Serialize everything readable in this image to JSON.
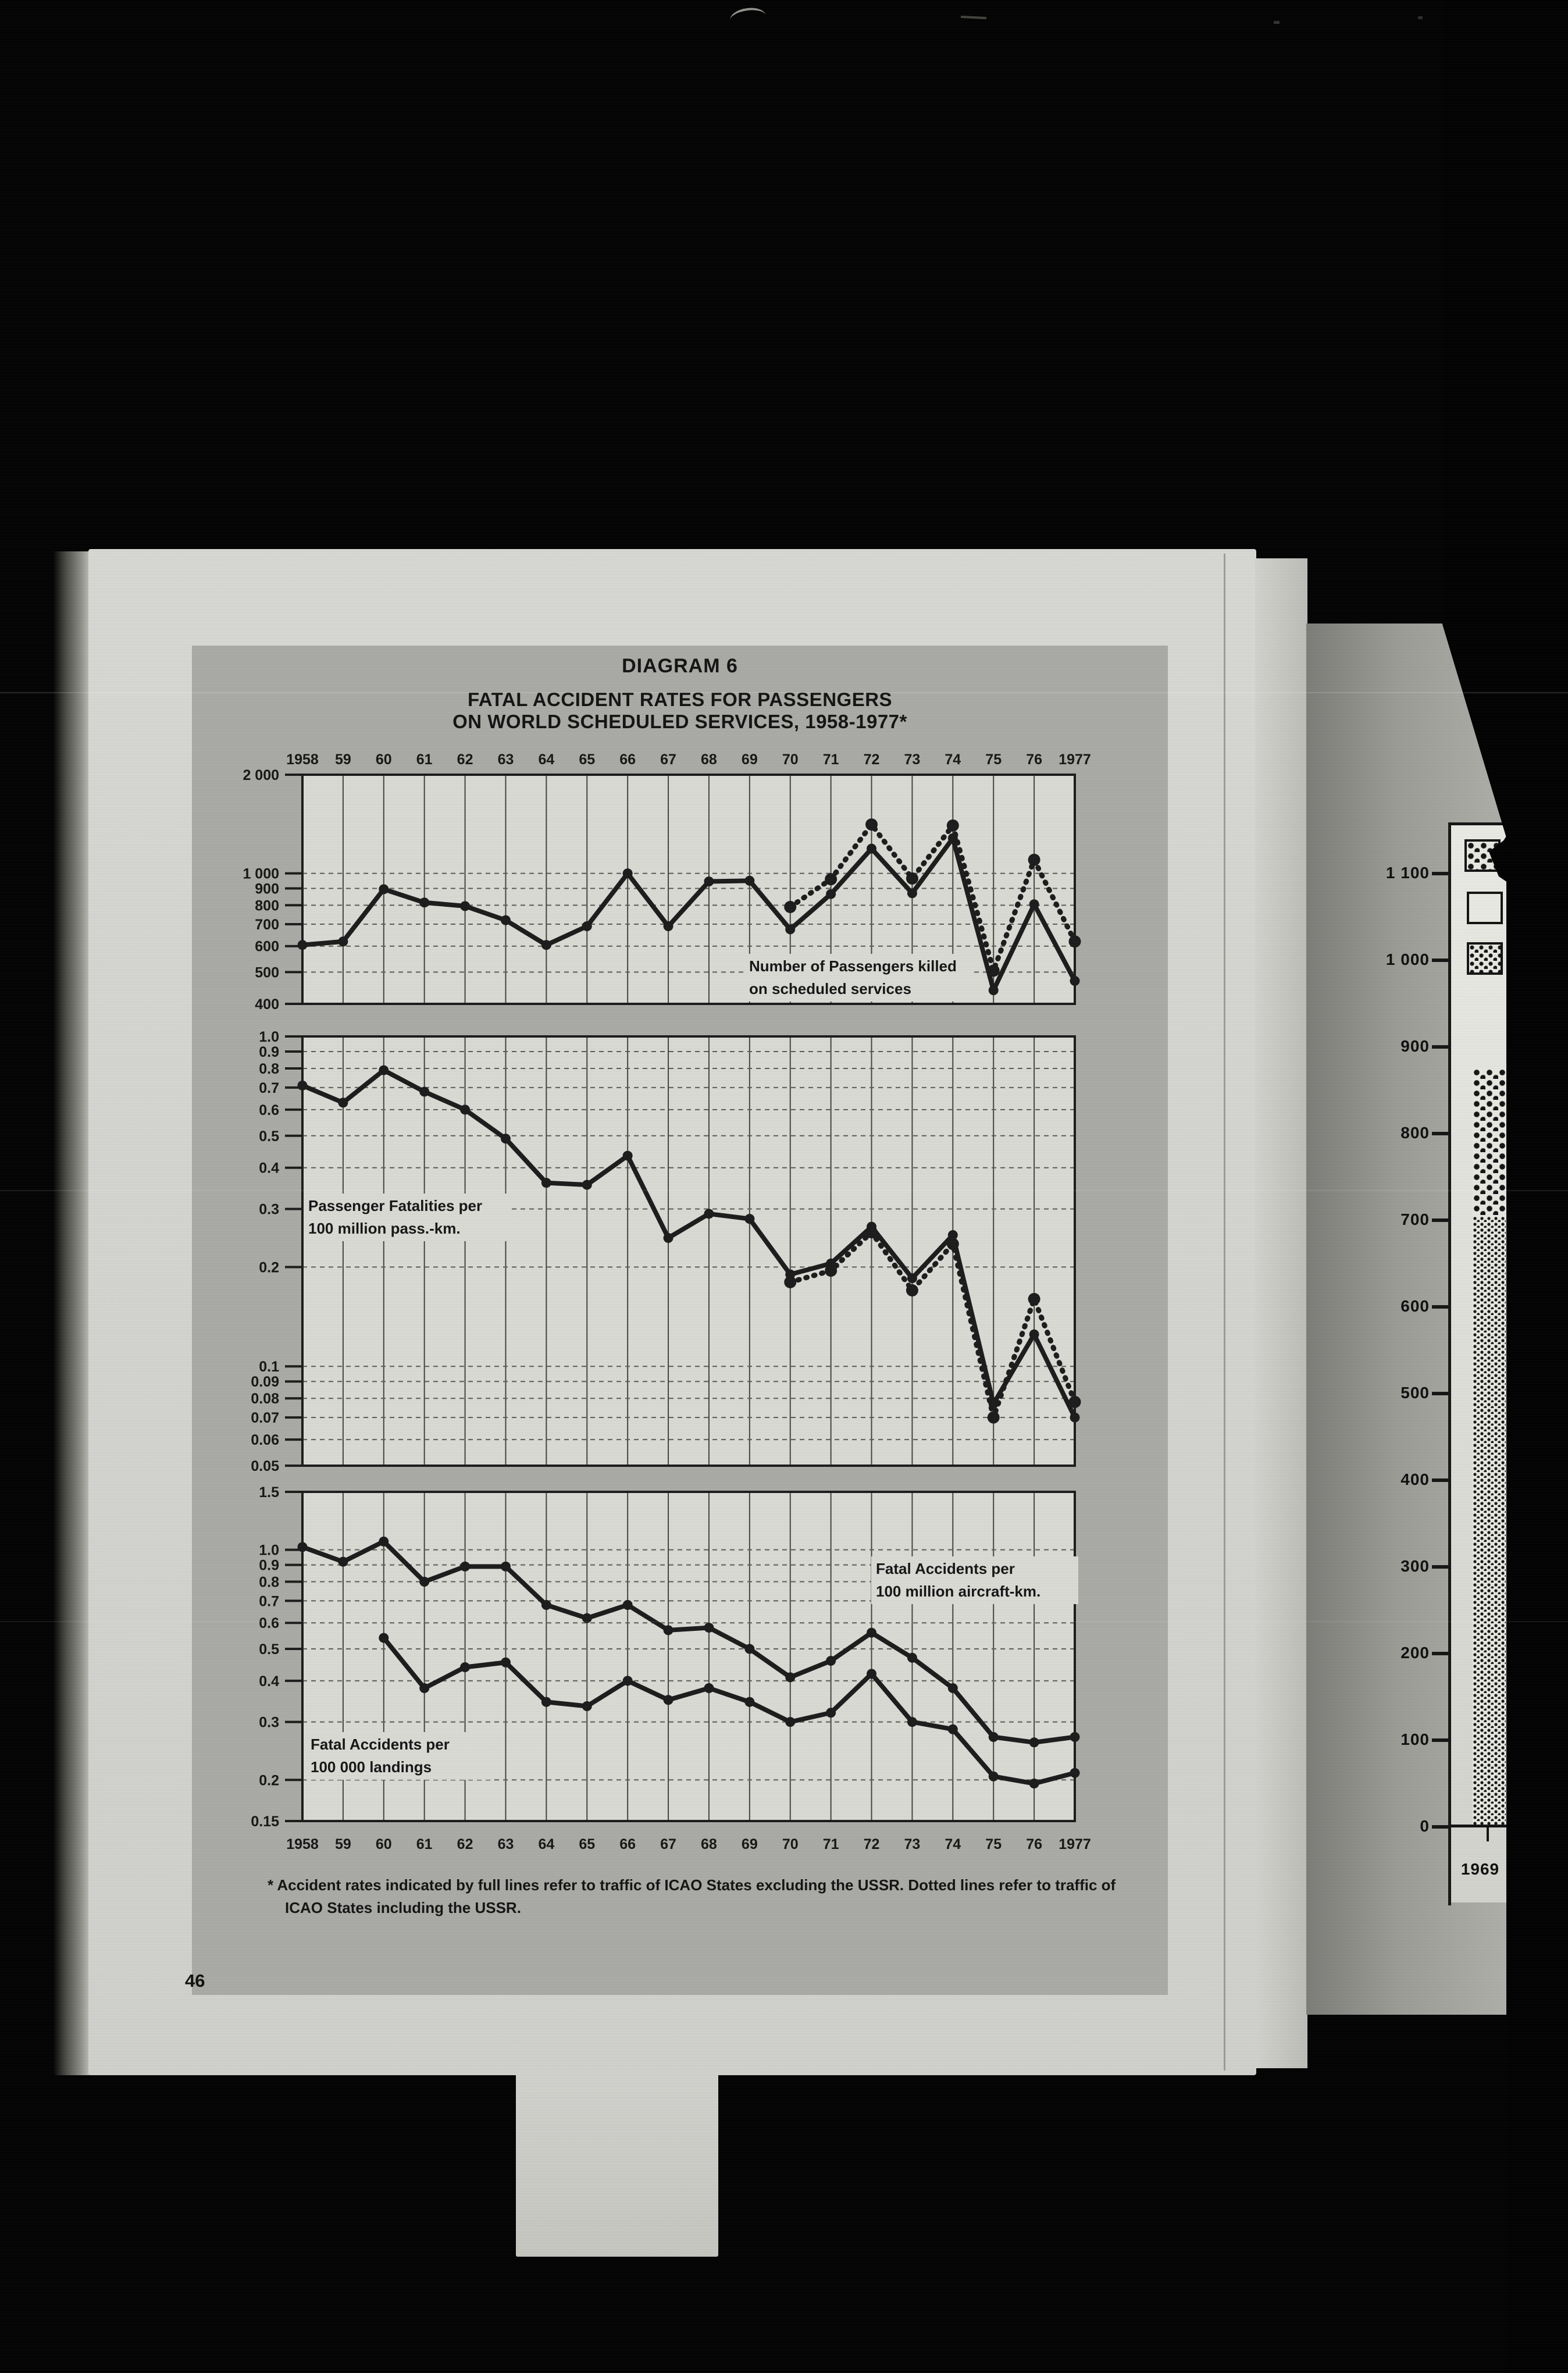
{
  "title": {
    "line1": "DIAGRAM 6",
    "line2": "FATAL ACCIDENT RATES FOR PASSENGERS",
    "line3": "ON WORLD SCHEDULED SERVICES, 1958-1977*"
  },
  "footnote": "* Accident rates indicated by full lines refer to traffic of ICAO States excluding the USSR. Dotted lines refer to traffic of ICAO States including the USSR.",
  "page_number": "46",
  "x_labels": [
    "1958",
    "59",
    "60",
    "61",
    "62",
    "63",
    "64",
    "65",
    "66",
    "67",
    "68",
    "69",
    "70",
    "71",
    "72",
    "73",
    "74",
    "75",
    "76",
    "1977"
  ],
  "chart_data": [
    {
      "type": "line",
      "id": "passengers-killed",
      "annotation": [
        "Number of Passengers killed",
        "on scheduled services"
      ],
      "y_scale": "log",
      "ylim": [
        400,
        2000
      ],
      "grid": true,
      "y_ticks": [
        {
          "label": "2 000",
          "value": 2000,
          "grid": false
        },
        {
          "label": "1 000",
          "value": 1000,
          "grid": true
        },
        {
          "label": "900",
          "value": 900,
          "grid": true
        },
        {
          "label": "800",
          "value": 800,
          "grid": true
        },
        {
          "label": "700",
          "value": 700,
          "grid": true
        },
        {
          "label": "600",
          "value": 600,
          "grid": true
        },
        {
          "label": "500",
          "value": 500,
          "grid": true
        },
        {
          "label": "400",
          "value": 400,
          "grid": false
        }
      ],
      "series": [
        {
          "name": "ICAO States excluding the USSR (full line)",
          "style": "solid",
          "start_index": 0,
          "values": [
            605,
            620,
            895,
            815,
            795,
            720,
            605,
            690,
            1000,
            690,
            945,
            950,
            675,
            865,
            1190,
            870,
            1280,
            440,
            805,
            470
          ]
        },
        {
          "name": "ICAO States including the USSR (dotted line)",
          "style": "dotted",
          "start_index": 12,
          "values": [
            790,
            960,
            1410,
            965,
            1400,
            505,
            1100,
            620
          ]
        }
      ]
    },
    {
      "type": "line",
      "id": "passenger-fatalities-per-100m-pass-km",
      "annotation": [
        "Passenger Fatalities per",
        "100 million pass.-km."
      ],
      "y_scale": "log",
      "ylim": [
        0.05,
        1.0
      ],
      "grid": true,
      "y_ticks": [
        {
          "label": "1.0",
          "value": 1.0,
          "grid": false
        },
        {
          "label": "0.9",
          "value": 0.9,
          "grid": true
        },
        {
          "label": "0.8",
          "value": 0.8,
          "grid": true
        },
        {
          "label": "0.7",
          "value": 0.7,
          "grid": true
        },
        {
          "label": "0.6",
          "value": 0.6,
          "grid": true
        },
        {
          "label": "0.5",
          "value": 0.5,
          "grid": true
        },
        {
          "label": "0.4",
          "value": 0.4,
          "grid": true
        },
        {
          "label": "0.3",
          "value": 0.3,
          "grid": true
        },
        {
          "label": "0.2",
          "value": 0.2,
          "grid": true
        },
        {
          "label": "0.1",
          "value": 0.1,
          "grid": true
        },
        {
          "label": "0.09",
          "value": 0.09,
          "grid": true
        },
        {
          "label": "0.08",
          "value": 0.08,
          "grid": true
        },
        {
          "label": "0.07",
          "value": 0.07,
          "grid": true
        },
        {
          "label": "0.06",
          "value": 0.06,
          "grid": true
        },
        {
          "label": "0.05",
          "value": 0.05,
          "grid": false
        }
      ],
      "series": [
        {
          "name": "ICAO States excluding the USSR (full line)",
          "style": "solid",
          "start_index": 0,
          "values": [
            0.71,
            0.63,
            0.79,
            0.68,
            0.6,
            0.49,
            0.36,
            0.355,
            0.435,
            0.245,
            0.29,
            0.28,
            0.19,
            0.205,
            0.265,
            0.185,
            0.25,
            0.077,
            0.125,
            0.07
          ]
        },
        {
          "name": "ICAO States including the USSR (dotted line)",
          "style": "dotted",
          "start_index": 12,
          "values": [
            0.18,
            0.195,
            0.255,
            0.17,
            0.235,
            0.07,
            0.16,
            0.078
          ]
        }
      ]
    },
    {
      "type": "line",
      "id": "fatal-accident-rates",
      "annotation_upper": [
        "Fatal Accidents per",
        "100 million aircraft-km."
      ],
      "annotation_lower": [
        "Fatal Accidents per",
        "100 000 landings"
      ],
      "y_scale": "log",
      "ylim": [
        0.15,
        1.5
      ],
      "grid": true,
      "y_ticks": [
        {
          "label": "1.5",
          "value": 1.5,
          "grid": false
        },
        {
          "label": "1.0",
          "value": 1.0,
          "grid": true
        },
        {
          "label": "0.9",
          "value": 0.9,
          "grid": true
        },
        {
          "label": "0.8",
          "value": 0.8,
          "grid": true
        },
        {
          "label": "0.7",
          "value": 0.7,
          "grid": true
        },
        {
          "label": "0.6",
          "value": 0.6,
          "grid": true
        },
        {
          "label": "0.5",
          "value": 0.5,
          "grid": true
        },
        {
          "label": "0.4",
          "value": 0.4,
          "grid": true
        },
        {
          "label": "0.3",
          "value": 0.3,
          "grid": true
        },
        {
          "label": "0.2",
          "value": 0.2,
          "grid": true
        },
        {
          "label": "0.15",
          "value": 0.15,
          "grid": false
        }
      ],
      "series": [
        {
          "name": "Fatal Accidents per 100 million aircraft-km",
          "style": "solid",
          "start_index": 0,
          "values": [
            1.02,
            0.92,
            1.06,
            0.8,
            0.89,
            0.89,
            0.68,
            0.62,
            0.68,
            0.57,
            0.58,
            0.5,
            0.41,
            0.46,
            0.56,
            0.47,
            0.38,
            0.27,
            0.26,
            0.27
          ]
        },
        {
          "name": "Fatal Accidents per 100 000 landings",
          "style": "solid",
          "start_index": 2,
          "values": [
            0.54,
            0.38,
            0.44,
            0.455,
            0.345,
            0.335,
            0.4,
            0.35,
            0.38,
            0.345,
            0.3,
            0.32,
            0.42,
            0.3,
            0.285,
            0.205,
            0.195,
            0.21
          ]
        }
      ]
    },
    {
      "type": "bar",
      "id": "facing-page-bar-fragment",
      "categories": [
        "1969"
      ],
      "y_scale": "linear",
      "ylim": [
        0,
        1100
      ],
      "y_tick_labels": [
        "1 100",
        "1 000",
        "900",
        "800",
        "700",
        "600",
        "500",
        "400",
        "300",
        "200",
        "100",
        "0"
      ],
      "bar": {
        "category": "1969",
        "segments": [
          {
            "pattern": "coarse-dots",
            "from": 705,
            "to": 875
          },
          {
            "pattern": "fine-dots",
            "from": 0,
            "to": 705
          }
        ]
      },
      "legend_patterns": [
        "coarse-dots",
        "plain",
        "medium-dots"
      ]
    }
  ]
}
